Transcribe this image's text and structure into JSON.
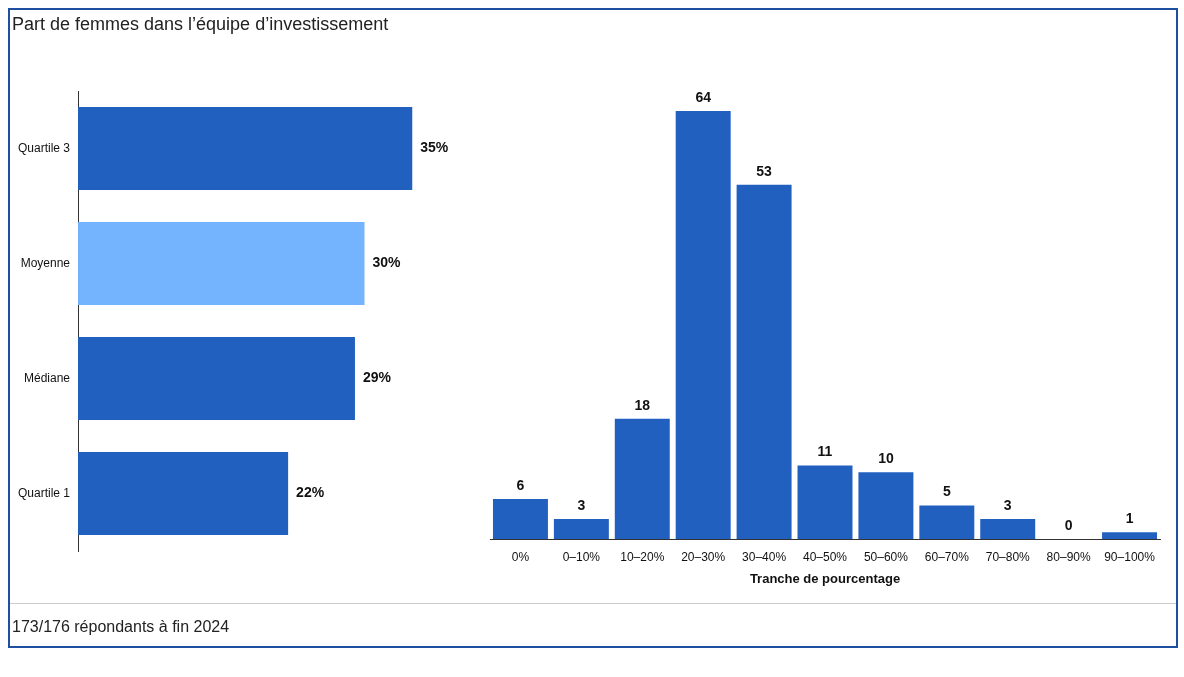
{
  "chart_data": [
    {
      "type": "bar",
      "orientation": "horizontal",
      "title": "Part de femmes dans l’équipe d’investissement",
      "categories": [
        "Quartile 3",
        "Moyenne",
        "Médiane",
        "Quartile 1"
      ],
      "values": [
        35,
        30,
        29,
        22
      ],
      "colors": [
        "#2160bf",
        "#74b4ff",
        "#2160bf",
        "#2160bf"
      ],
      "value_labels": [
        "35%",
        "30%",
        "29%",
        "22%"
      ],
      "tick_labels": "y"
    },
    {
      "type": "bar",
      "xlabel": "Tranche de pourcentage",
      "categories": [
        "0%",
        "0–10%",
        "10–20%",
        "20–30%",
        "30–40%",
        "40–50%",
        "50–60%",
        "60–70%",
        "70–80%",
        "80–90%",
        "90–100%"
      ],
      "values": [
        6,
        3,
        18,
        64,
        53,
        11,
        10,
        5,
        3,
        0,
        1
      ],
      "color": "#2160bf",
      "data_labels": true,
      "tick_labels": "x",
      "annotations": [
        "173/176 répondants à fin 2024"
      ]
    }
  ]
}
